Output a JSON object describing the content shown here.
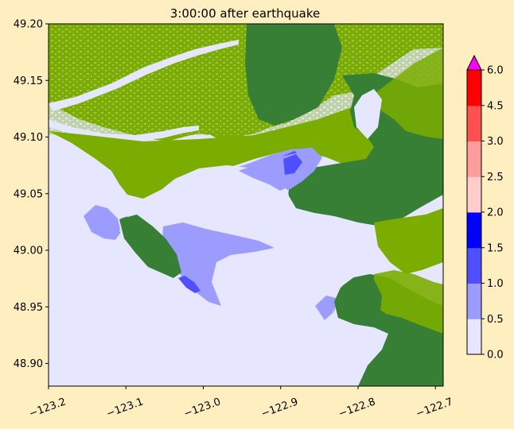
{
  "chart_data": {
    "type": "heatmap",
    "title": "3:00:00 after earthquake",
    "xlabel": "",
    "ylabel": "",
    "xlim": [
      -123.2,
      -122.69
    ],
    "ylim": [
      48.88,
      49.2
    ],
    "x_ticks": [
      {
        "value": -123.2,
        "label": "−123.2"
      },
      {
        "value": -123.1,
        "label": "−123.1"
      },
      {
        "value": -123.0,
        "label": "−123.0"
      },
      {
        "value": -122.9,
        "label": "−122.9"
      },
      {
        "value": -122.8,
        "label": "−122.8"
      },
      {
        "value": -122.7,
        "label": "−122.7"
      }
    ],
    "y_ticks": [
      {
        "value": 48.9,
        "label": "48.90"
      },
      {
        "value": 48.95,
        "label": "48.95"
      },
      {
        "value": 49.0,
        "label": "49.00"
      },
      {
        "value": 49.05,
        "label": "49.05"
      },
      {
        "value": 49.1,
        "label": "49.10"
      },
      {
        "value": 49.15,
        "label": "49.15"
      },
      {
        "value": 49.2,
        "label": "49.20"
      }
    ],
    "colorbar": {
      "range": [
        0,
        6
      ],
      "extend": "max",
      "extend_color": "#ff00ff",
      "bounds": [
        0,
        0.5,
        1.0,
        1.5,
        2.0,
        2.5,
        3.0,
        4.5,
        6.0
      ],
      "tick_labels": [
        "0.0",
        "0.5",
        "1.0",
        "1.5",
        "2.0",
        "2.5",
        "3.0",
        "4.5",
        "6.0"
      ],
      "colors": [
        "#e6e6ff",
        "#9c9cff",
        "#4f4fff",
        "#0000ff",
        "#ffcccc",
        "#ff9c9c",
        "#ff5050",
        "#ff0000"
      ]
    },
    "land_colors": {
      "lowland": "#7aad00",
      "highland": "#367f34",
      "water": "#e6e6ff"
    },
    "flood_patches": [
      {
        "level": 0.5,
        "shape": "west-bay-inundation"
      },
      {
        "level": 0.5,
        "shape": "point-roberts-west-inundation"
      },
      {
        "level": 0.5,
        "shape": "mud-bay-inundation"
      },
      {
        "level": 1.5,
        "shape": "boundary-bay-south-tip"
      },
      {
        "level": 1.0,
        "shape": "blackie-spit-inlet"
      }
    ]
  }
}
